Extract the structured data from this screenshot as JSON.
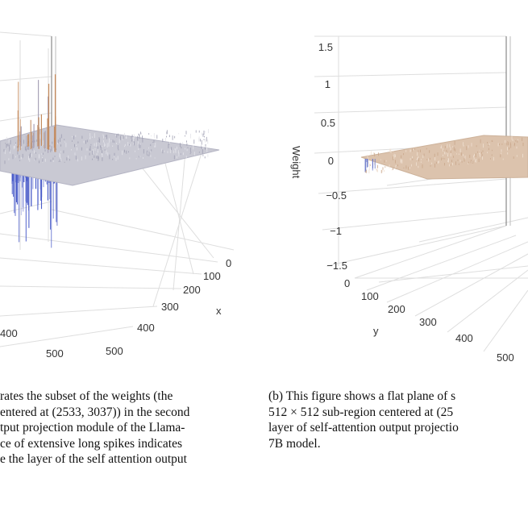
{
  "figure_a": {
    "chart_data": {
      "type": "surface3d",
      "x_axis": {
        "label": "x",
        "ticks": [
          "0",
          "100",
          "200",
          "300",
          "400",
          "500"
        ]
      },
      "y_axis": {
        "label": "",
        "ticks": [
          "400",
          "500"
        ]
      },
      "surface": "flat plane with extensive long positive (orange) and negative (blue) spikes"
    }
  },
  "figure_b": {
    "chart_data": {
      "type": "surface3d",
      "z_axis": {
        "label": "Weight",
        "ticks": [
          "1.5",
          "1",
          "0.5",
          "0",
          "−0.5",
          "−1",
          "−1.5"
        ]
      },
      "y_axis": {
        "label": "y",
        "ticks": [
          "0",
          "100",
          "200",
          "300",
          "400",
          "500"
        ]
      },
      "surface": "flat plane"
    }
  },
  "caption_a": {
    "lines": [
      "rates the subset of the weights (the",
      "entered at (2533, 3037)) in the second",
      "tput projection module of the Llama-",
      "ce of extensive long spikes indicates",
      "e the layer of the self attention output"
    ]
  },
  "caption_b": {
    "lines": [
      "(b) This figure shows a flat plane of s",
      "512 × 512 sub-region centered at (25",
      "layer of self-attention output projectio",
      "7B model."
    ]
  }
}
